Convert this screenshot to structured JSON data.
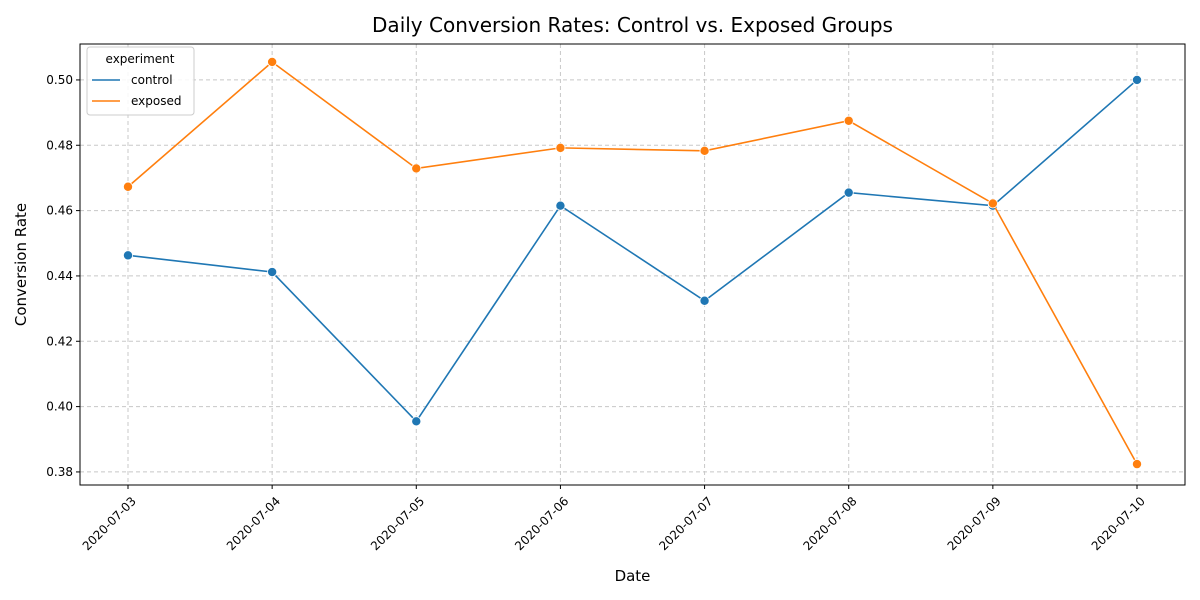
{
  "chart_data": {
    "type": "line",
    "title": "Daily Conversion Rates: Control vs. Exposed Groups",
    "xlabel": "Date",
    "ylabel": "Conversion Rate",
    "categories": [
      "2020-07-03",
      "2020-07-04",
      "2020-07-05",
      "2020-07-06",
      "2020-07-07",
      "2020-07-08",
      "2020-07-09",
      "2020-07-10"
    ],
    "ylim": [
      0.376,
      0.511
    ],
    "yticks": [
      "0.38",
      "0.40",
      "0.42",
      "0.44",
      "0.46",
      "0.48",
      "0.50"
    ],
    "grid": true,
    "markers": true,
    "legend": {
      "title": "experiment",
      "position": "upper-left"
    },
    "series": [
      {
        "name": "control",
        "color": "#1f77b4",
        "values": [
          0.4463,
          0.4412,
          0.3955,
          0.4615,
          0.4324,
          0.4655,
          0.4615,
          0.5
        ]
      },
      {
        "name": "exposed",
        "color": "#ff7f0e",
        "values": [
          0.4673,
          0.5055,
          0.4729,
          0.4792,
          0.4783,
          0.4875,
          0.4622,
          0.3824
        ]
      }
    ]
  }
}
